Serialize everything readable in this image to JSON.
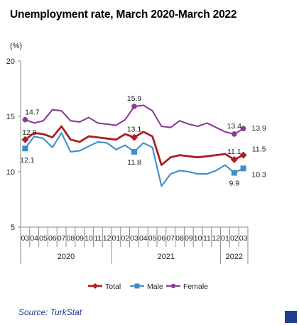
{
  "chart_data": {
    "type": "line",
    "title": "Unemployment rate, March 2020-March 2022",
    "ylabel": "(%)",
    "xlabel": "",
    "ylim": [
      5,
      20
    ],
    "yticks": [
      5,
      10,
      15,
      20
    ],
    "grid": false,
    "legend_position": "bottom",
    "x": [
      "03",
      "04",
      "05",
      "06",
      "07",
      "08",
      "09",
      "10",
      "11",
      "12",
      "01",
      "02",
      "03",
      "04",
      "05",
      "06",
      "07",
      "08",
      "09",
      "10",
      "11",
      "12",
      "01",
      "02",
      "03"
    ],
    "year_groups": [
      {
        "label": "2020",
        "months": 10
      },
      {
        "label": "2021",
        "months": 12
      },
      {
        "label": "2022",
        "months": 3
      }
    ],
    "series": [
      {
        "name": "Total",
        "color": "#b01c24",
        "values": [
          12.9,
          13.5,
          13.4,
          13.1,
          14.1,
          12.9,
          12.7,
          13.2,
          13.1,
          13.0,
          12.9,
          13.4,
          13.1,
          13.6,
          13.2,
          10.6,
          11.3,
          11.5,
          11.4,
          11.3,
          11.4,
          11.5,
          11.6,
          11.1,
          11.5
        ],
        "labels": [
          {
            "index": 0,
            "text": "12.9"
          },
          {
            "index": 12,
            "text": "13.1"
          },
          {
            "index": 23,
            "text": "11.1"
          },
          {
            "index": 24,
            "text": "11.5"
          }
        ]
      },
      {
        "name": "Male",
        "color": "#3d8fc9",
        "values": [
          12.1,
          13.2,
          13.0,
          12.2,
          13.5,
          11.8,
          11.9,
          12.3,
          12.7,
          12.6,
          12.0,
          12.4,
          11.8,
          12.6,
          12.2,
          8.7,
          9.8,
          10.1,
          10.0,
          9.8,
          9.8,
          10.1,
          10.6,
          9.9,
          10.3
        ],
        "labels": [
          {
            "index": 0,
            "text": "12.1"
          },
          {
            "index": 12,
            "text": "11.8"
          },
          {
            "index": 23,
            "text": "9.9"
          },
          {
            "index": 24,
            "text": "10.3"
          }
        ]
      },
      {
        "name": "Female",
        "color": "#8e3a9a",
        "values": [
          14.7,
          14.4,
          14.6,
          15.6,
          15.5,
          14.6,
          14.5,
          14.9,
          14.4,
          14.3,
          14.2,
          14.7,
          15.9,
          16.0,
          15.5,
          14.1,
          14.0,
          14.6,
          14.3,
          14.1,
          14.4,
          14.0,
          13.6,
          13.4,
          13.9
        ],
        "labels": [
          {
            "index": 0,
            "text": "14.7"
          },
          {
            "index": 12,
            "text": "15.9"
          },
          {
            "index": 23,
            "text": "13.4"
          },
          {
            "index": 24,
            "text": "13.9"
          }
        ]
      }
    ]
  },
  "source": "Source: TurkStat"
}
